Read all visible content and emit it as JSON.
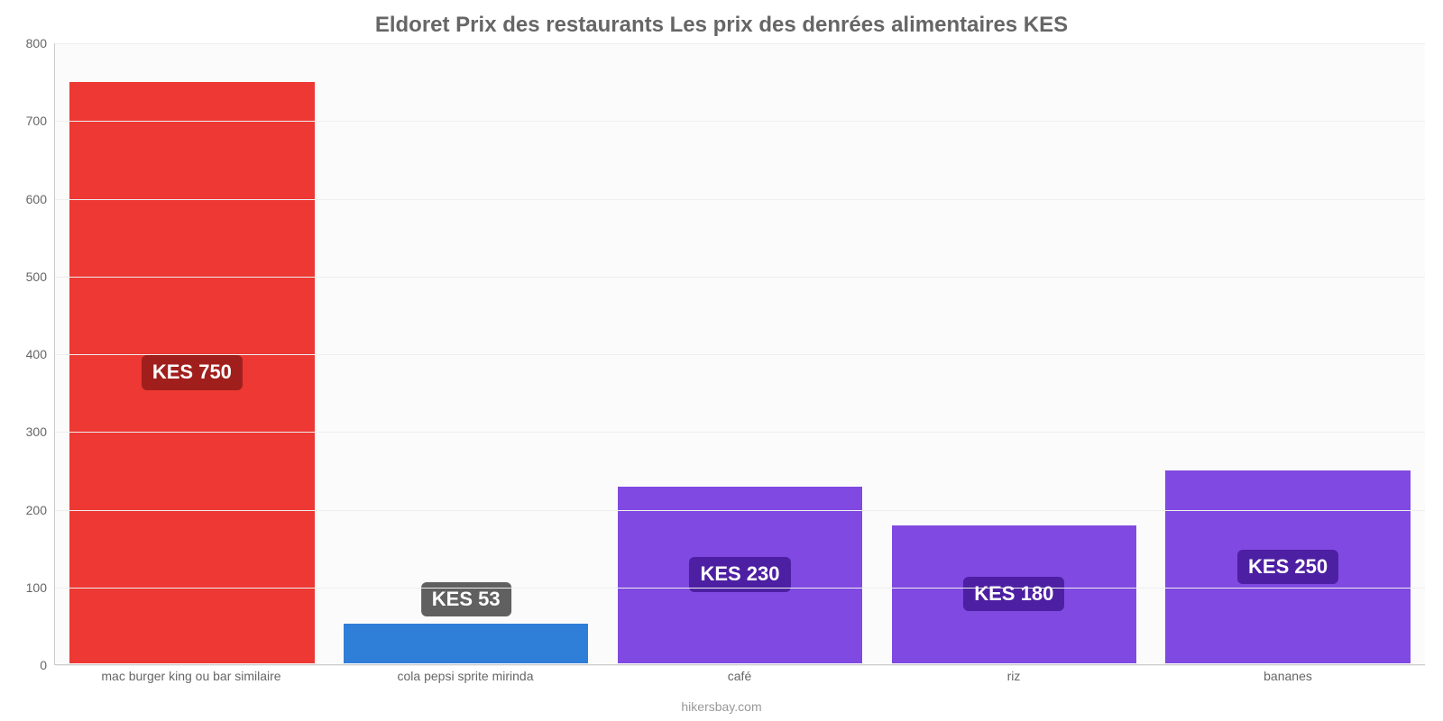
{
  "chart": {
    "type": "bar",
    "title": "Eldoret Prix des restaurants Les prix des denrées alimentaires KES",
    "title_fontsize": 24,
    "title_color": "#666666",
    "background_color": "#ffffff",
    "plot_bg": "#fbfbfb",
    "grid_color": "#eeeeee",
    "axis_color": "#cccccc",
    "tick_label_color": "#666666",
    "tick_label_fontsize": 14,
    "ylim": [
      0,
      800
    ],
    "ytick_step": 100,
    "yticks": [
      0,
      100,
      200,
      300,
      400,
      500,
      600,
      700,
      800
    ],
    "bar_width_pct": 90,
    "categories": [
      "mac burger king ou bar similaire",
      "cola pepsi sprite mirinda",
      "café",
      "riz",
      "bananes"
    ],
    "values": [
      750,
      53,
      230,
      180,
      250
    ],
    "value_labels": [
      "KES 750",
      "KES 53",
      "KES 230",
      "KES 180",
      "KES 250"
    ],
    "bar_colors": [
      "#ed3833",
      "#2f7ed8",
      "#8049e1",
      "#8049e1",
      "#8049e1"
    ],
    "badge_colors": [
      "#a01f1c",
      "#606060",
      "#4d1fa3",
      "#4d1fa3",
      "#4d1fa3"
    ],
    "badge_text_color": "#ffffff",
    "badge_fontsize": 22,
    "credit": "hikersbay.com",
    "credit_color": "#999999"
  }
}
